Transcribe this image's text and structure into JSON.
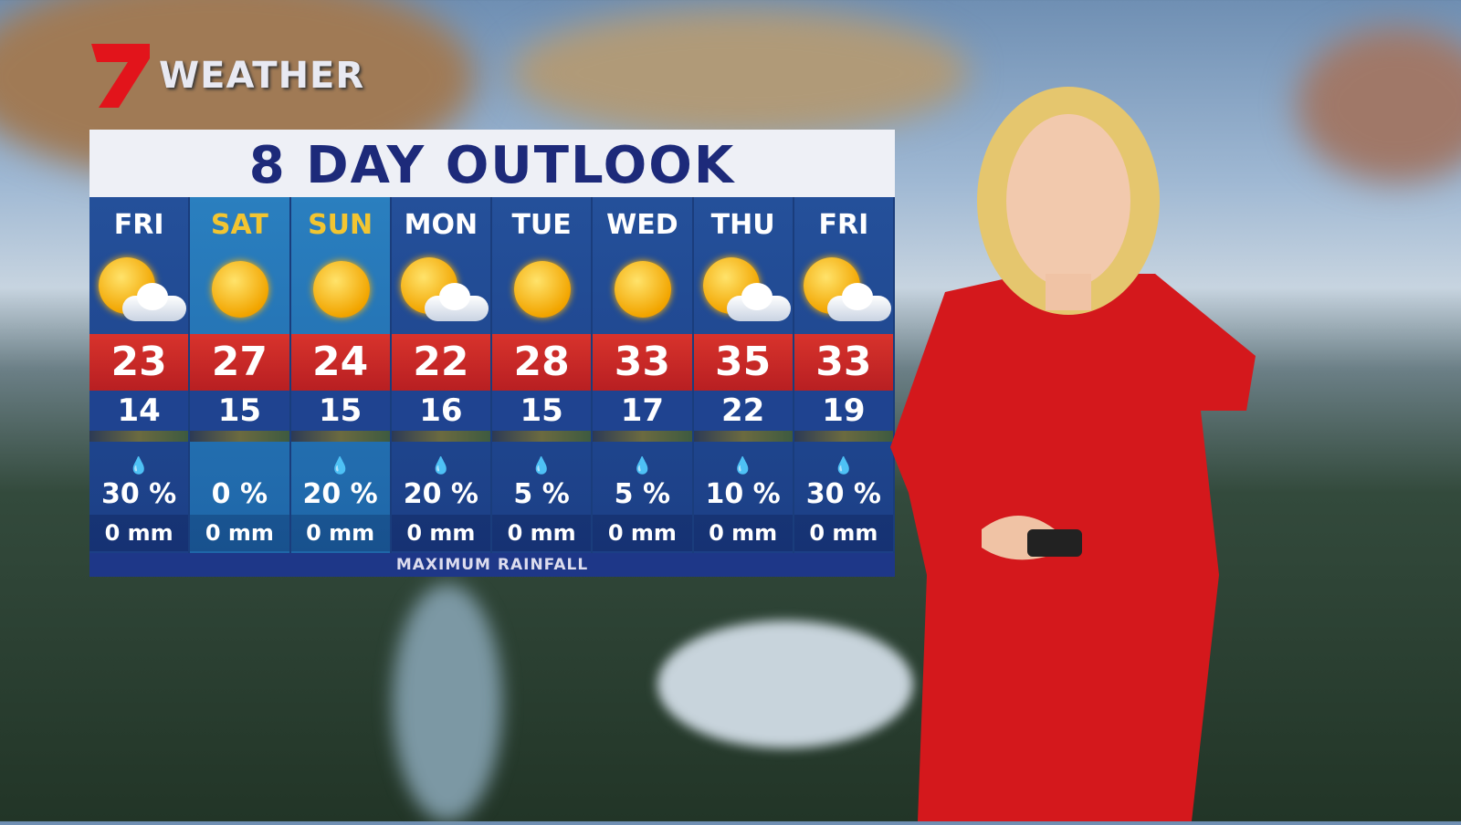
{
  "logo": {
    "text": "WEATHER",
    "brand_color": "#e2141b"
  },
  "board": {
    "title": "8 DAY OUTLOOK",
    "footer": "MAXIMUM RAINFALL",
    "days": [
      {
        "day": "FRI",
        "icon": "partly-cloudy-icon",
        "max": "23",
        "min": "14",
        "rain_chance": "30 %",
        "rain_mm": "0 mm",
        "weekend": false
      },
      {
        "day": "SAT",
        "icon": "sunny-icon",
        "max": "27",
        "min": "15",
        "rain_chance": "0 %",
        "rain_mm": "0 mm",
        "weekend": true
      },
      {
        "day": "SUN",
        "icon": "sunny-icon",
        "max": "24",
        "min": "15",
        "rain_chance": "20 %",
        "rain_mm": "0 mm",
        "weekend": true
      },
      {
        "day": "MON",
        "icon": "partly-cloudy-icon",
        "max": "22",
        "min": "16",
        "rain_chance": "20 %",
        "rain_mm": "0 mm",
        "weekend": false
      },
      {
        "day": "TUE",
        "icon": "sunny-icon",
        "max": "28",
        "min": "15",
        "rain_chance": "5 %",
        "rain_mm": "0 mm",
        "weekend": false
      },
      {
        "day": "WED",
        "icon": "sunny-icon",
        "max": "33",
        "min": "17",
        "rain_chance": "5 %",
        "rain_mm": "0 mm",
        "weekend": false
      },
      {
        "day": "THU",
        "icon": "partly-cloudy-icon",
        "max": "35",
        "min": "22",
        "rain_chance": "10 %",
        "rain_mm": "0 mm",
        "weekend": false
      },
      {
        "day": "FRI",
        "icon": "partly-cloudy-icon",
        "max": "33",
        "min": "19",
        "rain_chance": "30 %",
        "rain_mm": "0 mm",
        "weekend": false
      }
    ]
  }
}
